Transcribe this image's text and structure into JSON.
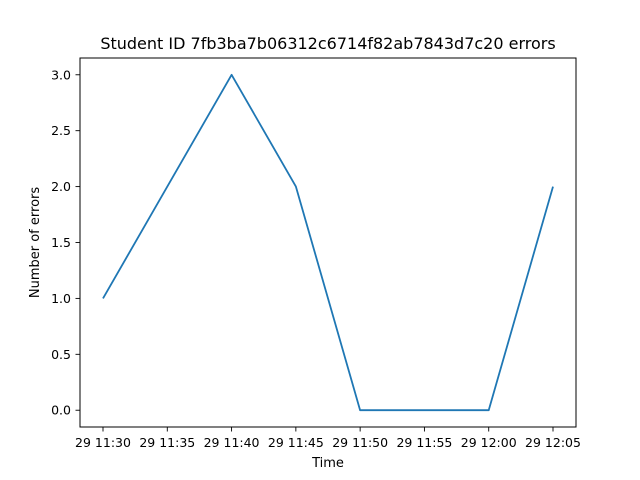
{
  "chart_data": {
    "type": "line",
    "title": "Student ID 7fb3ba7b06312c6714f82ab7843d7c20 errors",
    "xlabel": "Time",
    "ylabel": "Number of errors",
    "x": [
      "29 11:30",
      "29 11:35",
      "29 11:40",
      "29 11:45",
      "29 11:50",
      "29 11:55",
      "29 12:00",
      "29 12:05"
    ],
    "series": [
      {
        "values": [
          1,
          2,
          3,
          2,
          0,
          0,
          0,
          2
        ]
      }
    ],
    "x_ticks": [
      "29 11:30",
      "29 11:35",
      "29 11:40",
      "29 11:45",
      "29 11:50",
      "29 11:55",
      "29 12:00",
      "29 12:05"
    ],
    "y_ticks": [
      "0.0",
      "0.5",
      "1.0",
      "1.5",
      "2.0",
      "2.5",
      "3.0"
    ],
    "ylim": [
      -0.15,
      3.15
    ],
    "grid": false,
    "line_color": "#1f77b4"
  }
}
